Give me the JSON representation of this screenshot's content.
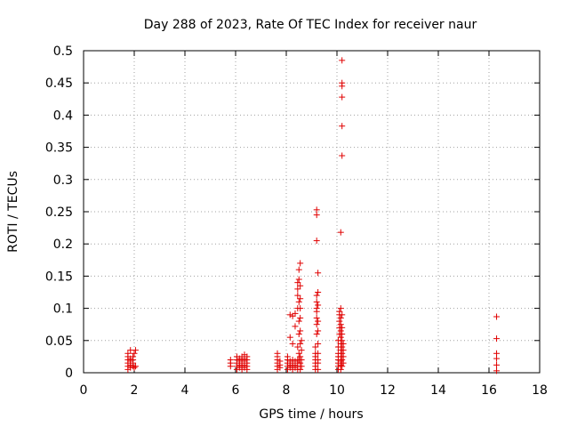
{
  "chart_data": {
    "type": "scatter",
    "title": "Day 288 of 2023, Rate Of TEC Index for receiver naur",
    "xlabel": "GPS time / hours",
    "ylabel": "ROTI / TECUs",
    "xlim": [
      0,
      18
    ],
    "ylim": [
      0,
      0.5
    ],
    "xticks": [
      "0",
      "2",
      "4",
      "6",
      "8",
      "10",
      "12",
      "14",
      "16",
      "18"
    ],
    "yticks": [
      "0",
      "0.05",
      "0.1",
      "0.15",
      "0.2",
      "0.25",
      "0.3",
      "0.35",
      "0.4",
      "0.45",
      "0.5"
    ],
    "grid": true,
    "marker": "+",
    "color": "#e00000",
    "series": [
      {
        "points": [
          [
            1.75,
            0.005
          ],
          [
            1.75,
            0.01
          ],
          [
            1.75,
            0.015
          ],
          [
            1.75,
            0.02
          ],
          [
            1.75,
            0.025
          ],
          [
            1.75,
            0.03
          ],
          [
            1.85,
            0.008
          ],
          [
            1.85,
            0.012
          ],
          [
            1.85,
            0.018
          ],
          [
            1.85,
            0.022
          ],
          [
            1.85,
            0.035
          ],
          [
            1.95,
            0.01
          ],
          [
            1.95,
            0.015
          ],
          [
            1.95,
            0.02
          ],
          [
            1.95,
            0.025
          ],
          [
            2.0,
            0.008
          ],
          [
            2.0,
            0.03
          ],
          [
            2.05,
            0.035
          ],
          [
            2.05,
            0.01
          ],
          [
            5.8,
            0.01
          ],
          [
            5.8,
            0.015
          ],
          [
            5.8,
            0.02
          ],
          [
            6.05,
            0.005
          ],
          [
            6.05,
            0.01
          ],
          [
            6.05,
            0.015
          ],
          [
            6.05,
            0.02
          ],
          [
            6.05,
            0.025
          ],
          [
            6.15,
            0.008
          ],
          [
            6.15,
            0.012
          ],
          [
            6.15,
            0.018
          ],
          [
            6.15,
            0.022
          ],
          [
            6.25,
            0.005
          ],
          [
            6.25,
            0.01
          ],
          [
            6.25,
            0.015
          ],
          [
            6.25,
            0.02
          ],
          [
            6.25,
            0.025
          ],
          [
            6.35,
            0.008
          ],
          [
            6.35,
            0.012
          ],
          [
            6.35,
            0.018
          ],
          [
            6.35,
            0.022
          ],
          [
            6.35,
            0.028
          ],
          [
            6.45,
            0.005
          ],
          [
            6.45,
            0.01
          ],
          [
            6.45,
            0.015
          ],
          [
            6.45,
            0.02
          ],
          [
            6.45,
            0.025
          ],
          [
            7.65,
            0.005
          ],
          [
            7.65,
            0.01
          ],
          [
            7.65,
            0.015
          ],
          [
            7.65,
            0.02
          ],
          [
            7.65,
            0.025
          ],
          [
            7.65,
            0.03
          ],
          [
            7.75,
            0.008
          ],
          [
            7.75,
            0.012
          ],
          [
            7.75,
            0.018
          ],
          [
            8.05,
            0.005
          ],
          [
            8.05,
            0.01
          ],
          [
            8.05,
            0.015
          ],
          [
            8.05,
            0.02
          ],
          [
            8.05,
            0.025
          ],
          [
            8.15,
            0.008
          ],
          [
            8.15,
            0.012
          ],
          [
            8.15,
            0.018
          ],
          [
            8.15,
            0.055
          ],
          [
            8.15,
            0.09
          ],
          [
            8.25,
            0.005
          ],
          [
            8.25,
            0.01
          ],
          [
            8.25,
            0.015
          ],
          [
            8.25,
            0.02
          ],
          [
            8.25,
            0.045
          ],
          [
            8.25,
            0.088
          ],
          [
            8.35,
            0.008
          ],
          [
            8.35,
            0.012
          ],
          [
            8.35,
            0.018
          ],
          [
            8.35,
            0.072
          ],
          [
            8.35,
            0.092
          ],
          [
            8.45,
            0.005
          ],
          [
            8.45,
            0.01
          ],
          [
            8.45,
            0.015
          ],
          [
            8.45,
            0.02
          ],
          [
            8.45,
            0.04
          ],
          [
            8.45,
            0.1
          ],
          [
            8.45,
            0.12
          ],
          [
            8.45,
            0.13
          ],
          [
            8.45,
            0.14
          ],
          [
            8.5,
            0.02
          ],
          [
            8.5,
            0.03
          ],
          [
            8.5,
            0.06
          ],
          [
            8.5,
            0.08
          ],
          [
            8.5,
            0.11
          ],
          [
            8.5,
            0.145
          ],
          [
            8.5,
            0.16
          ],
          [
            8.55,
            0.005
          ],
          [
            8.55,
            0.015
          ],
          [
            8.55,
            0.025
          ],
          [
            8.55,
            0.045
          ],
          [
            8.55,
            0.065
          ],
          [
            8.55,
            0.085
          ],
          [
            8.55,
            0.1
          ],
          [
            8.55,
            0.115
          ],
          [
            8.55,
            0.135
          ],
          [
            8.55,
            0.17
          ],
          [
            8.6,
            0.01
          ],
          [
            8.6,
            0.02
          ],
          [
            8.6,
            0.035
          ],
          [
            8.6,
            0.05
          ],
          [
            9.15,
            0.005
          ],
          [
            9.15,
            0.01
          ],
          [
            9.15,
            0.015
          ],
          [
            9.15,
            0.02
          ],
          [
            9.15,
            0.025
          ],
          [
            9.15,
            0.03
          ],
          [
            9.15,
            0.04
          ],
          [
            9.2,
            0.06
          ],
          [
            9.2,
            0.075
          ],
          [
            9.2,
            0.085
          ],
          [
            9.2,
            0.095
          ],
          [
            9.2,
            0.1
          ],
          [
            9.2,
            0.11
          ],
          [
            9.2,
            0.12
          ],
          [
            9.25,
            0.005
          ],
          [
            9.25,
            0.015
          ],
          [
            9.25,
            0.02
          ],
          [
            9.25,
            0.03
          ],
          [
            9.25,
            0.045
          ],
          [
            9.25,
            0.065
          ],
          [
            9.25,
            0.08
          ],
          [
            9.25,
            0.105
          ],
          [
            9.25,
            0.125
          ],
          [
            9.25,
            0.155
          ],
          [
            9.2,
            0.205
          ],
          [
            9.2,
            0.245
          ],
          [
            9.2,
            0.253
          ],
          [
            10.05,
            0.005
          ],
          [
            10.05,
            0.01
          ],
          [
            10.05,
            0.015
          ],
          [
            10.05,
            0.02
          ],
          [
            10.05,
            0.025
          ],
          [
            10.05,
            0.03
          ],
          [
            10.05,
            0.04
          ],
          [
            10.05,
            0.05
          ],
          [
            10.1,
            0.06
          ],
          [
            10.1,
            0.07
          ],
          [
            10.1,
            0.08
          ],
          [
            10.1,
            0.09
          ],
          [
            10.1,
            0.095
          ],
          [
            10.15,
            0.005
          ],
          [
            10.15,
            0.012
          ],
          [
            10.15,
            0.018
          ],
          [
            10.15,
            0.025
          ],
          [
            10.15,
            0.035
          ],
          [
            10.15,
            0.045
          ],
          [
            10.15,
            0.055
          ],
          [
            10.15,
            0.065
          ],
          [
            10.15,
            0.075
          ],
          [
            10.15,
            0.085
          ],
          [
            10.15,
            0.1
          ],
          [
            10.2,
            0.01
          ],
          [
            10.2,
            0.02
          ],
          [
            10.2,
            0.03
          ],
          [
            10.2,
            0.04
          ],
          [
            10.2,
            0.05
          ],
          [
            10.2,
            0.06
          ],
          [
            10.2,
            0.07
          ],
          [
            10.2,
            0.09
          ],
          [
            10.25,
            0.015
          ],
          [
            10.25,
            0.025
          ],
          [
            10.25,
            0.035
          ],
          [
            10.25,
            0.045
          ],
          [
            10.15,
            0.218
          ],
          [
            10.2,
            0.337
          ],
          [
            10.2,
            0.383
          ],
          [
            10.2,
            0.428
          ],
          [
            10.2,
            0.445
          ],
          [
            10.2,
            0.45
          ],
          [
            10.2,
            0.485
          ],
          [
            16.3,
            0.003
          ],
          [
            16.3,
            0.012
          ],
          [
            16.3,
            0.022
          ],
          [
            16.3,
            0.03
          ],
          [
            16.3,
            0.053
          ],
          [
            16.3,
            0.087
          ]
        ]
      }
    ]
  }
}
